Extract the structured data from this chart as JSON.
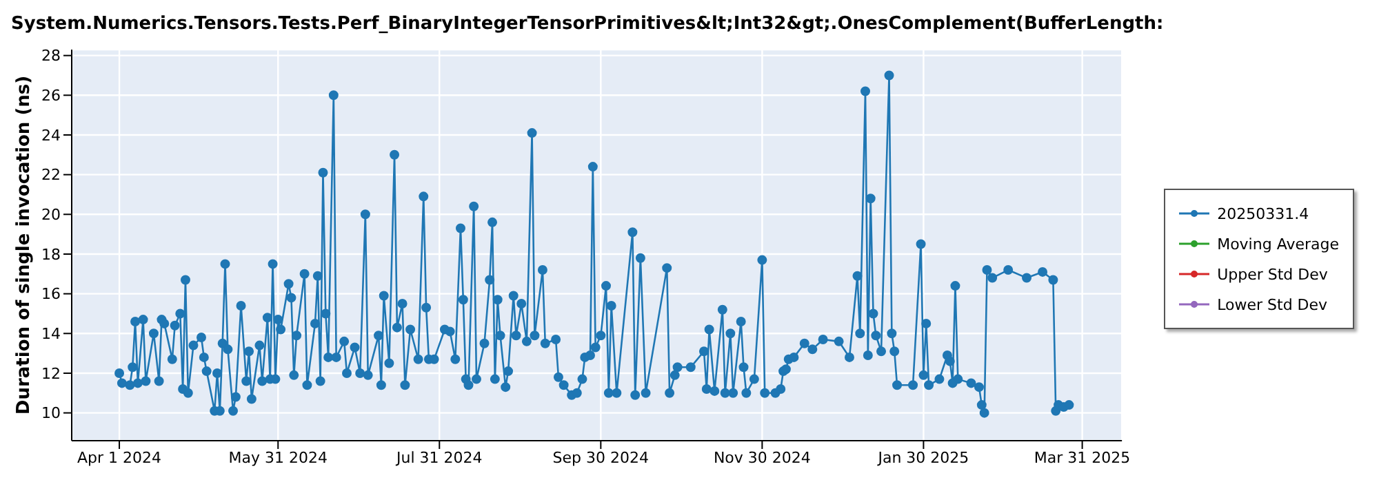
{
  "chart_data": {
    "type": "line",
    "title": "System.Numerics.Tensors.Tests.Perf_BinaryIntegerTensorPrimitives&lt;Int32&gt;.OnesComplement(BufferLength:",
    "ylabel": "Duration of single invocation (ns)",
    "x": [
      "2024-04-01",
      "2024-04-02",
      "2024-04-05",
      "2024-04-06",
      "2024-04-07",
      "2024-04-08",
      "2024-04-10",
      "2024-04-11",
      "2024-04-14",
      "2024-04-16",
      "2024-04-17",
      "2024-04-18",
      "2024-04-21",
      "2024-04-22",
      "2024-04-24",
      "2024-04-25",
      "2024-04-26",
      "2024-04-27",
      "2024-04-29",
      "2024-05-02",
      "2024-05-03",
      "2024-05-04",
      "2024-05-07",
      "2024-05-08",
      "2024-05-09",
      "2024-05-10",
      "2024-05-11",
      "2024-05-12",
      "2024-05-14",
      "2024-05-15",
      "2024-05-17",
      "2024-05-19",
      "2024-05-20",
      "2024-05-21",
      "2024-05-24",
      "2024-05-25",
      "2024-05-27",
      "2024-05-28",
      "2024-05-29",
      "2024-05-30",
      "2024-05-31",
      "2024-06-01",
      "2024-06-04",
      "2024-06-05",
      "2024-06-06",
      "2024-06-07",
      "2024-06-10",
      "2024-06-11",
      "2024-06-14",
      "2024-06-15",
      "2024-06-16",
      "2024-06-17",
      "2024-06-18",
      "2024-06-19",
      "2024-06-21",
      "2024-06-22",
      "2024-06-25",
      "2024-06-26",
      "2024-06-29",
      "2024-07-01",
      "2024-07-03",
      "2024-07-04",
      "2024-07-08",
      "2024-07-09",
      "2024-07-10",
      "2024-07-12",
      "2024-07-14",
      "2024-07-15",
      "2024-07-17",
      "2024-07-18",
      "2024-07-20",
      "2024-07-23",
      "2024-07-25",
      "2024-07-26",
      "2024-07-27",
      "2024-07-29",
      "2024-08-02",
      "2024-08-04",
      "2024-08-06",
      "2024-08-08",
      "2024-08-09",
      "2024-08-10",
      "2024-08-11",
      "2024-08-13",
      "2024-08-14",
      "2024-08-17",
      "2024-08-19",
      "2024-08-20",
      "2024-08-21",
      "2024-08-22",
      "2024-08-23",
      "2024-08-25",
      "2024-08-26",
      "2024-08-28",
      "2024-08-29",
      "2024-08-31",
      "2024-09-02",
      "2024-09-04",
      "2024-09-05",
      "2024-09-08",
      "2024-09-09",
      "2024-09-13",
      "2024-09-14",
      "2024-09-16",
      "2024-09-19",
      "2024-09-21",
      "2024-09-23",
      "2024-09-24",
      "2024-09-26",
      "2024-09-27",
      "2024-09-28",
      "2024-09-30",
      "2024-10-02",
      "2024-10-03",
      "2024-10-04",
      "2024-10-06",
      "2024-10-12",
      "2024-10-13",
      "2024-10-15",
      "2024-10-17",
      "2024-10-25",
      "2024-10-26",
      "2024-10-28",
      "2024-10-29",
      "2024-11-03",
      "2024-11-08",
      "2024-11-09",
      "2024-11-10",
      "2024-11-12",
      "2024-11-15",
      "2024-11-16",
      "2024-11-18",
      "2024-11-19",
      "2024-11-22",
      "2024-11-23",
      "2024-11-24",
      "2024-11-27",
      "2024-11-30",
      "2024-12-01",
      "2024-12-05",
      "2024-12-07",
      "2024-12-08",
      "2024-12-09",
      "2024-12-10",
      "2024-12-12",
      "2024-12-16",
      "2024-12-19",
      "2024-12-23",
      "2024-12-29",
      "2025-01-02",
      "2025-01-05",
      "2025-01-06",
      "2025-01-08",
      "2025-01-09",
      "2025-01-10",
      "2025-01-11",
      "2025-01-12",
      "2025-01-14",
      "2025-01-17",
      "2025-01-18",
      "2025-01-19",
      "2025-01-20",
      "2025-01-26",
      "2025-01-29",
      "2025-01-30",
      "2025-01-31",
      "2025-02-01",
      "2025-02-05",
      "2025-02-08",
      "2025-02-09",
      "2025-02-10",
      "2025-02-11",
      "2025-02-12",
      "2025-02-17",
      "2025-02-20",
      "2025-02-21",
      "2025-02-22",
      "2025-02-23",
      "2025-02-25",
      "2025-03-03",
      "2025-03-10",
      "2025-03-16",
      "2025-03-20",
      "2025-03-21",
      "2025-03-22",
      "2025-03-24",
      "2025-03-26"
    ],
    "series": [
      {
        "name": "20250331.4",
        "color": "#1f77b4",
        "values": [
          12.0,
          11.5,
          11.4,
          12.3,
          14.6,
          11.5,
          14.7,
          11.6,
          14.0,
          11.6,
          14.7,
          14.5,
          12.7,
          14.4,
          15.0,
          11.2,
          16.7,
          11.0,
          13.4,
          13.8,
          12.8,
          12.1,
          10.1,
          12.0,
          10.1,
          13.5,
          17.5,
          13.2,
          10.1,
          10.8,
          15.4,
          11.6,
          13.1,
          10.7,
          13.4,
          11.6,
          14.8,
          11.7,
          17.5,
          11.7,
          14.7,
          14.2,
          16.5,
          15.8,
          11.9,
          13.9,
          17.0,
          11.4,
          14.5,
          16.9,
          11.6,
          22.1,
          15.0,
          12.8,
          26.0,
          12.8,
          13.6,
          12.0,
          13.3,
          12.0,
          20.0,
          11.9,
          13.9,
          11.4,
          15.9,
          12.5,
          23.0,
          14.3,
          15.5,
          11.4,
          14.2,
          12.7,
          20.9,
          15.3,
          12.7,
          12.7,
          14.2,
          14.1,
          12.7,
          19.3,
          15.7,
          11.7,
          11.4,
          20.4,
          11.7,
          13.5,
          16.7,
          19.6,
          11.7,
          15.7,
          13.9,
          11.3,
          12.1,
          15.9,
          13.9,
          15.5,
          13.6,
          24.1,
          13.9,
          17.2,
          13.5,
          13.7,
          11.8,
          11.4,
          10.9,
          11.0,
          11.7,
          12.8,
          12.9,
          22.4,
          13.3,
          13.9,
          16.4,
          11.0,
          15.4,
          11.0,
          19.1,
          10.9,
          17.8,
          11.0,
          17.3,
          11.0,
          11.9,
          12.3,
          12.3,
          13.1,
          11.2,
          14.2,
          11.1,
          15.2,
          11.0,
          14.0,
          11.0,
          14.6,
          12.3,
          11.0,
          11.7,
          17.7,
          11.0,
          11.0,
          11.2,
          12.1,
          12.2,
          12.7,
          12.8,
          13.5,
          13.2,
          13.7,
          13.6,
          12.8,
          16.9,
          14.0,
          26.2,
          12.9,
          20.8,
          15.0,
          13.9,
          13.1,
          27.0,
          14.0,
          13.1,
          11.4,
          11.4,
          18.5,
          11.9,
          14.5,
          11.4,
          11.7,
          12.9,
          12.6,
          11.5,
          16.4,
          11.7,
          11.5,
          11.3,
          10.4,
          10.0,
          17.2,
          16.8,
          17.2,
          16.8,
          17.1,
          16.7,
          10.1,
          10.4,
          10.3,
          10.4
        ]
      },
      {
        "name": "Moving Average",
        "color": "#2ca02c",
        "values": [
          null,
          null,
          null,
          null,
          null,
          null,
          null,
          null,
          null,
          null,
          null,
          null,
          null,
          null,
          null,
          null,
          null,
          null,
          null,
          null,
          null,
          null,
          null,
          null,
          null,
          null,
          null,
          null,
          null,
          null,
          null,
          null,
          null,
          null,
          null,
          null,
          null,
          null,
          null,
          null,
          null,
          null,
          null,
          null,
          null,
          null,
          null,
          null,
          null,
          null,
          null,
          null,
          null,
          null,
          null,
          null,
          null,
          null,
          null,
          null,
          null,
          null,
          null,
          null,
          null,
          null,
          null,
          null,
          null,
          null,
          null,
          null,
          null,
          null,
          null,
          null,
          null,
          null,
          null,
          null,
          null,
          null,
          null,
          null,
          null,
          null,
          null,
          null,
          null,
          null,
          null,
          null,
          null,
          null,
          null,
          null,
          null,
          null,
          null,
          null,
          null,
          null,
          null,
          null,
          null,
          null,
          null,
          null,
          null,
          null,
          null,
          null,
          null,
          null,
          null,
          null,
          null,
          null,
          null,
          null,
          null,
          null,
          null,
          null,
          null,
          null,
          null,
          null,
          null,
          null,
          null,
          null,
          null,
          null,
          null,
          null,
          null,
          null,
          null,
          null,
          null,
          null,
          null,
          null,
          null,
          null,
          null,
          null,
          null,
          null,
          null,
          null,
          null,
          null,
          null,
          null,
          null,
          null,
          null,
          null,
          null,
          null,
          null,
          null,
          null,
          null,
          null,
          null,
          null,
          null,
          null,
          null,
          null,
          null,
          null,
          null,
          null,
          null,
          null,
          null,
          null,
          null,
          null,
          null,
          null,
          null,
          null
        ]
      },
      {
        "name": "Upper Std Dev",
        "color": "#d62728",
        "values": [
          null,
          null,
          null,
          null,
          null,
          null,
          null,
          null,
          null,
          null,
          null,
          null,
          null,
          null,
          null,
          null,
          null,
          null,
          null,
          null,
          null,
          null,
          null,
          null,
          null,
          null,
          null,
          null,
          null,
          null,
          null,
          null,
          null,
          null,
          null,
          null,
          null,
          null,
          null,
          null,
          null,
          null,
          null,
          null,
          null,
          null,
          null,
          null,
          null,
          null,
          null,
          null,
          null,
          null,
          null,
          null,
          null,
          null,
          null,
          null,
          null,
          null,
          null,
          null,
          null,
          null,
          null,
          null,
          null,
          null,
          null,
          null,
          null,
          null,
          null,
          null,
          null,
          null,
          null,
          null,
          null,
          null,
          null,
          null,
          null,
          null,
          null,
          null,
          null,
          null,
          null,
          null,
          null,
          null,
          null,
          null,
          null,
          null,
          null,
          null,
          null,
          null,
          null,
          null,
          null,
          null,
          null,
          null,
          null,
          null,
          null,
          null,
          null,
          null,
          null,
          null,
          null,
          null,
          null,
          null,
          null,
          null,
          null,
          null,
          null,
          null,
          null,
          null,
          null,
          null,
          null,
          null,
          null,
          null,
          null,
          null,
          null,
          null,
          null,
          null,
          null,
          null,
          null,
          null,
          null,
          null,
          null,
          null,
          null,
          null,
          null,
          null,
          null,
          null,
          null,
          null,
          null,
          null,
          null,
          null,
          null,
          null,
          null,
          null,
          null,
          null,
          null,
          null,
          null,
          null,
          null,
          null,
          null,
          null,
          null,
          null,
          null,
          null,
          null,
          null,
          null,
          null,
          null,
          null,
          null,
          null,
          null
        ]
      },
      {
        "name": "Lower Std Dev",
        "color": "#9467bd",
        "values": [
          null,
          null,
          null,
          null,
          null,
          null,
          null,
          null,
          null,
          null,
          null,
          null,
          null,
          null,
          null,
          null,
          null,
          null,
          null,
          null,
          null,
          null,
          null,
          null,
          null,
          null,
          null,
          null,
          null,
          null,
          null,
          null,
          null,
          null,
          null,
          null,
          null,
          null,
          null,
          null,
          null,
          null,
          null,
          null,
          null,
          null,
          null,
          null,
          null,
          null,
          null,
          null,
          null,
          null,
          null,
          null,
          null,
          null,
          null,
          null,
          null,
          null,
          null,
          null,
          null,
          null,
          null,
          null,
          null,
          null,
          null,
          null,
          null,
          null,
          null,
          null,
          null,
          null,
          null,
          null,
          null,
          null,
          null,
          null,
          null,
          null,
          null,
          null,
          null,
          null,
          null,
          null,
          null,
          null,
          null,
          null,
          null,
          null,
          null,
          null,
          null,
          null,
          null,
          null,
          null,
          null,
          null,
          null,
          null,
          null,
          null,
          null,
          null,
          null,
          null,
          null,
          null,
          null,
          null,
          null,
          null,
          null,
          null,
          null,
          null,
          null,
          null,
          null,
          null,
          null,
          null,
          null,
          null,
          null,
          null,
          null,
          null,
          null,
          null,
          null,
          null,
          null,
          null,
          null,
          null,
          null,
          null,
          null,
          null,
          null,
          null,
          null,
          null,
          null,
          null,
          null,
          null,
          null,
          null,
          null,
          null,
          null,
          null,
          null,
          null,
          null,
          null,
          null,
          null,
          null,
          null,
          null,
          null,
          null,
          null,
          null,
          null,
          null,
          null,
          null,
          null,
          null,
          null,
          null,
          null,
          null,
          null
        ]
      }
    ],
    "xlim": [
      "2024-03-14",
      "2025-04-15"
    ],
    "xticks": [
      {
        "value": "2024-04-01",
        "label": "Apr 1 2024"
      },
      {
        "value": "2024-05-31",
        "label": "May 31 2024"
      },
      {
        "value": "2024-07-31",
        "label": "Jul 31 2024"
      },
      {
        "value": "2024-09-30",
        "label": "Sep 30 2024"
      },
      {
        "value": "2024-11-30",
        "label": "Nov 30 2024"
      },
      {
        "value": "2025-01-30",
        "label": "Jan 30 2025"
      },
      {
        "value": "2025-03-31",
        "label": "Mar 31 2025"
      }
    ],
    "ylim": [
      8.6,
      28.3
    ],
    "yticks": [
      10,
      12,
      14,
      16,
      18,
      20,
      22,
      24,
      26,
      28
    ],
    "grid": true,
    "legend": "right",
    "marker": "circle",
    "line_style": "solid"
  }
}
